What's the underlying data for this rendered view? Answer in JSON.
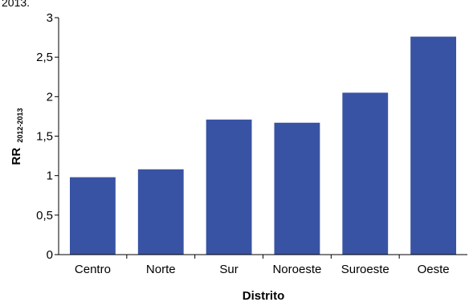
{
  "header": {
    "partial_text": "2013."
  },
  "chart_data": {
    "type": "bar",
    "categories": [
      "Centro",
      "Norte",
      "Sur",
      "Noroeste",
      "Suroeste",
      "Oeste"
    ],
    "values": [
      0.98,
      1.08,
      1.71,
      1.67,
      2.05,
      2.76
    ],
    "title": "",
    "xlabel": "Distrito",
    "ylabel": "RR",
    "ylabel_subscript": "2012-2013",
    "ylim": [
      0,
      3
    ],
    "yticks": [
      0,
      0.5,
      1,
      1.5,
      2,
      2.5,
      3
    ],
    "ytick_labels": [
      "0",
      "0,5",
      "1",
      "1,5",
      "2",
      "2,5",
      "3"
    ],
    "grid": false,
    "legend": "none",
    "bar_color": "#3953a4"
  }
}
